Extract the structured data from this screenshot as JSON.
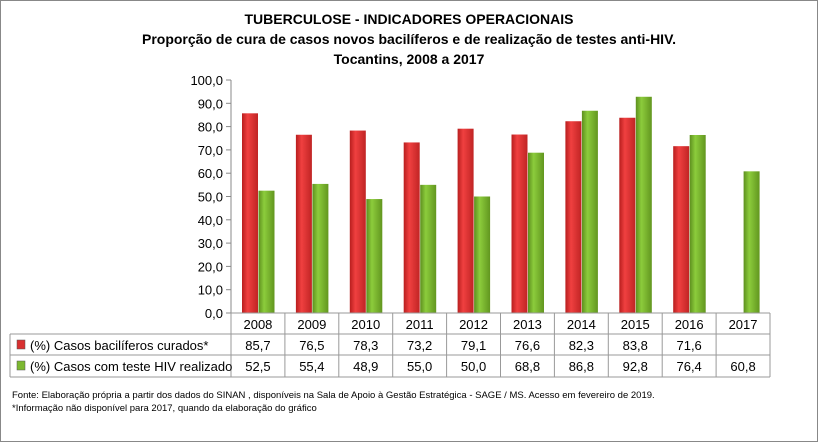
{
  "chart_data": {
    "type": "bar",
    "title": "TUBERCULOSE - INDICADORES OPERACIONAIS",
    "subtitle": "Proporção de cura de casos novos bacilíferos e de realização de testes anti-HIV.",
    "subtitle2": "Tocantins, 2008 a 2017",
    "categories": [
      "2008",
      "2009",
      "2010",
      "2011",
      "2012",
      "2013",
      "2014",
      "2015",
      "2016",
      "2017"
    ],
    "series": [
      {
        "name": "(%) Casos bacilíferos curados*",
        "color": "#e03030",
        "values": [
          85.7,
          76.5,
          78.3,
          73.2,
          79.1,
          76.6,
          82.3,
          83.8,
          71.6,
          null
        ],
        "labels": [
          "85,7",
          "76,5",
          "78,3",
          "73,2",
          "79,1",
          "76,6",
          "82,3",
          "83,8",
          "71,6",
          ""
        ]
      },
      {
        "name": "(%) Casos com teste HIV realizado",
        "color": "#7cb830",
        "values": [
          52.5,
          55.4,
          48.9,
          55.0,
          50.0,
          68.8,
          86.8,
          92.8,
          76.4,
          60.8
        ],
        "labels": [
          "52,5",
          "55,4",
          "48,9",
          "55,0",
          "50,0",
          "68,8",
          "86,8",
          "92,8",
          "76,4",
          "60,8"
        ]
      }
    ],
    "ylim": [
      0,
      100
    ],
    "yticks": [
      "0,0",
      "10,0",
      "20,0",
      "30,0",
      "40,0",
      "50,0",
      "60,0",
      "70,0",
      "80,0",
      "90,0",
      "100,0"
    ],
    "grid": false,
    "legend": "data-table"
  },
  "footnotes": {
    "source": "Fonte: Elaboração própria a partir dos dados do SINAN , disponíveis na Sala de  Apoio  à Gestão Estratégica - SAGE / MS. Acesso  em fevereiro de 2019.",
    "note": "*Informação não  disponível  para 2017,  quando da elaboração do gráfico"
  }
}
